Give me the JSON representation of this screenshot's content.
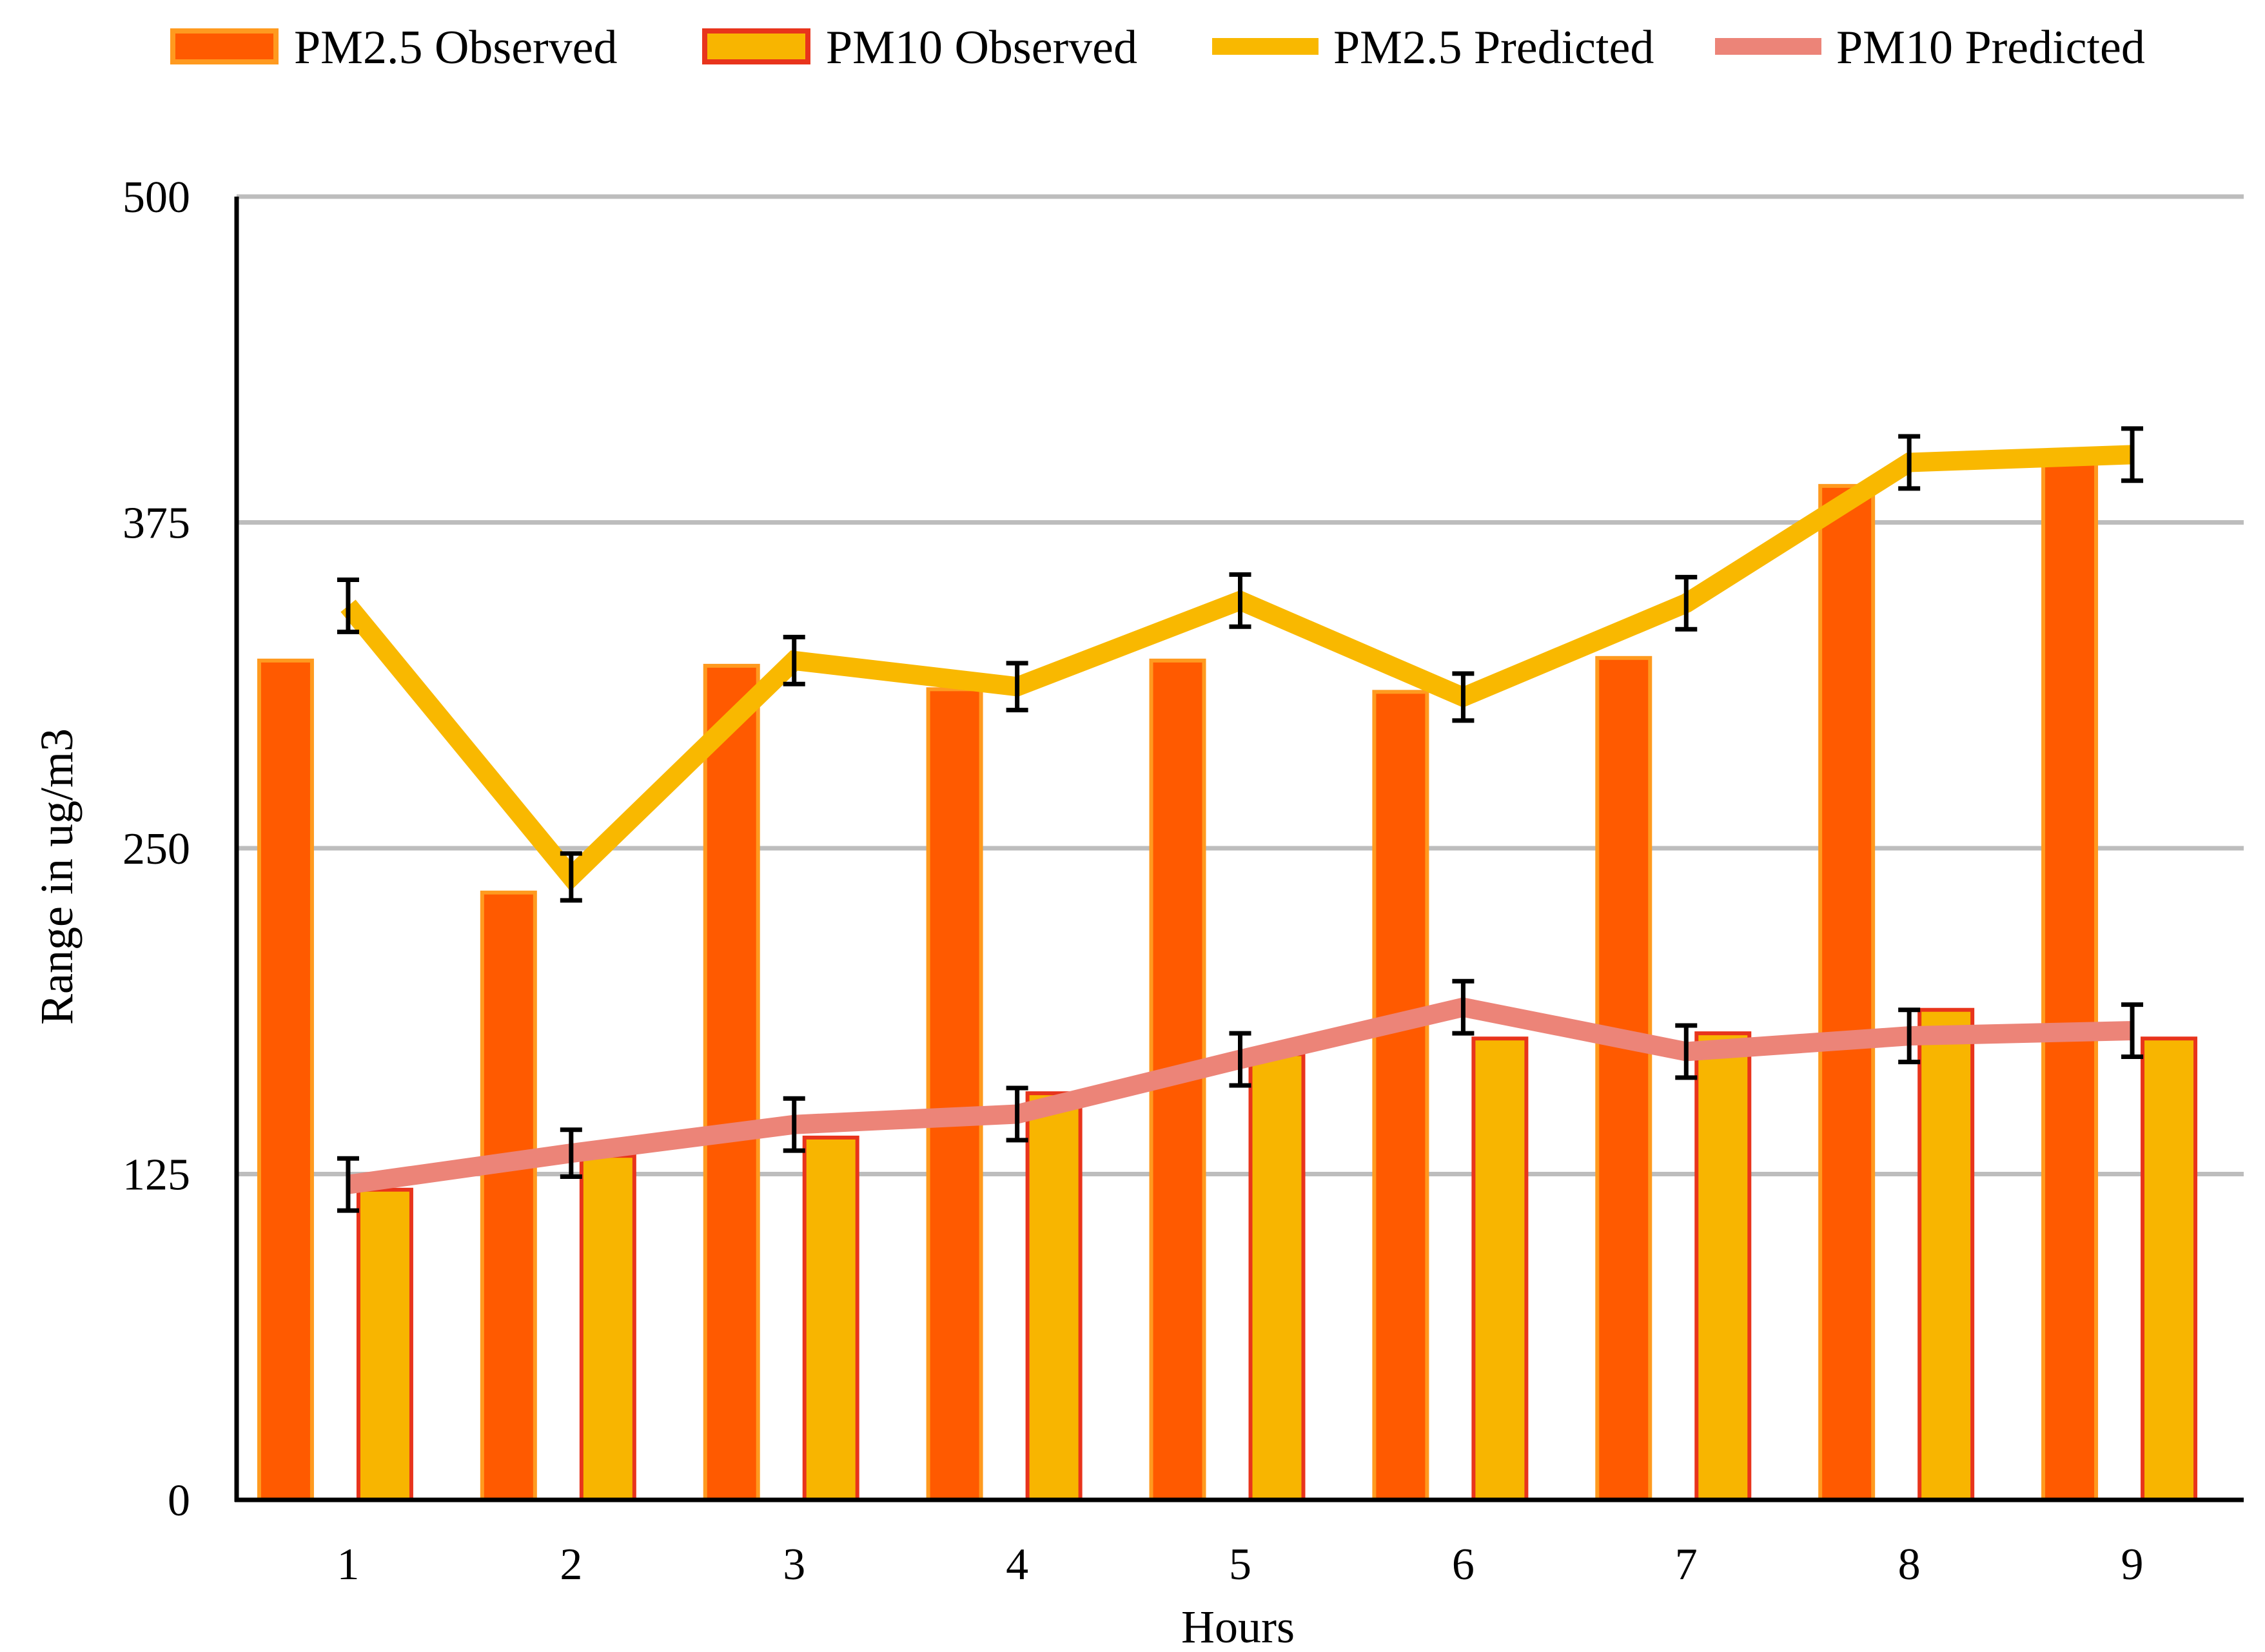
{
  "chart_data": {
    "type": "bar",
    "title": "",
    "xlabel": "Hours",
    "ylabel": "Range in ug/m3",
    "ylim": [
      0,
      500
    ],
    "yticks": [
      0,
      125,
      250,
      375,
      500
    ],
    "grid": true,
    "legend_position": "top",
    "categories": [
      "1",
      "2",
      "3",
      "4",
      "5",
      "6",
      "7",
      "8",
      "9"
    ],
    "series": [
      {
        "name": "PM2.5 Observed",
        "kind": "bar",
        "fill": "#ff5a00",
        "edge": "#ff9a1f",
        "values": [
          322,
          233,
          320,
          311,
          322,
          310,
          323,
          389,
          400
        ]
      },
      {
        "name": "PM10 Observed",
        "kind": "bar",
        "fill": "#f8b500",
        "edge": "#e8341c",
        "values": [
          119,
          132,
          139,
          156,
          171,
          177,
          179,
          188,
          177
        ]
      },
      {
        "name": "PM2.5 Predicted",
        "kind": "line",
        "color": "#f9b800",
        "values": [
          343,
          239,
          322,
          312,
          345,
          308,
          344,
          398,
          401
        ],
        "error": [
          10,
          9,
          9,
          9,
          10,
          9,
          10,
          10,
          10
        ]
      },
      {
        "name": "PM10 Predicted",
        "kind": "line",
        "color": "#ec8478",
        "values": [
          121,
          133,
          144,
          148,
          169,
          189,
          172,
          178,
          180
        ],
        "error": [
          10,
          9,
          10,
          10,
          10,
          10,
          10,
          10,
          10
        ]
      }
    ]
  }
}
